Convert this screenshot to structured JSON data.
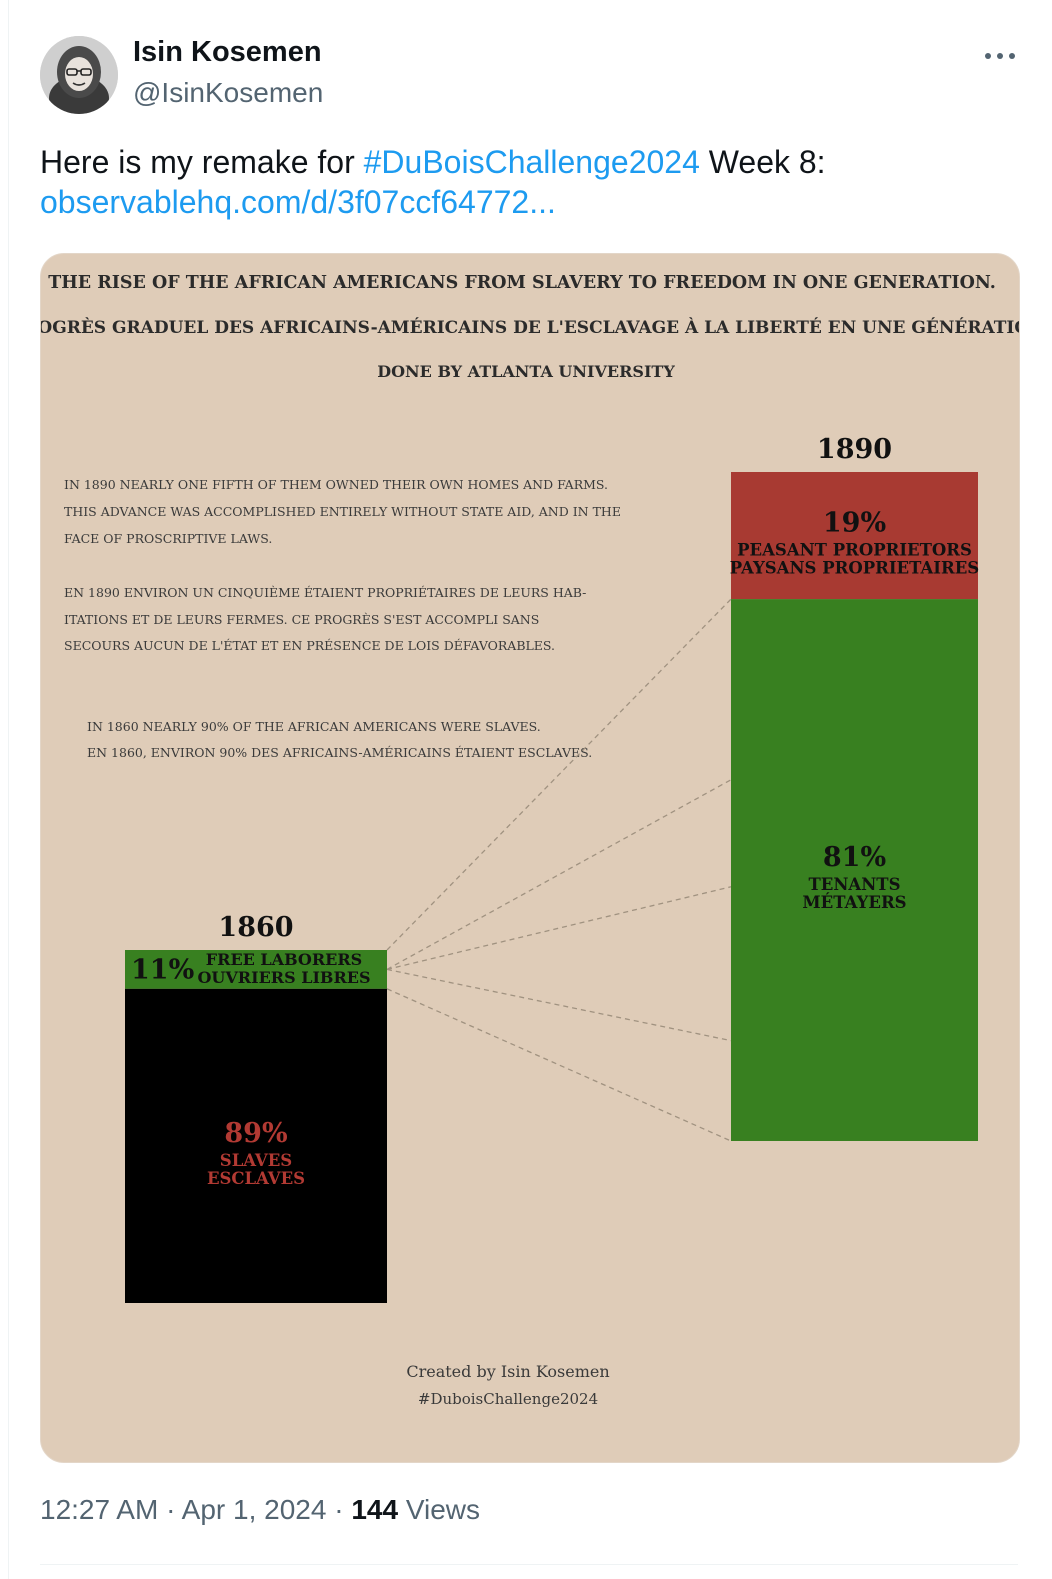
{
  "author": {
    "name": "Isin Kosemen",
    "handle": "@IsinKosemen",
    "avatar_icon": "person-photo-icon"
  },
  "more_icon": "more-horizontal-icon",
  "tweet": {
    "text_before": "Here is my remake for ",
    "hashtag": "#DuBoisChallenge2024",
    "text_after": " Week 8:",
    "link": "observablehq.com/d/3f07ccf64772..."
  },
  "meta": {
    "time": "12:27 AM",
    "separator": "·",
    "date": "Apr 1, 2024",
    "views_count": "144",
    "views_label": "Views"
  },
  "chart_data": {
    "type": "bar",
    "title": "THE RISE OF THE AFRICAN AMERICANS FROM SLAVERY TO FREEDOM IN ONE GENERATION.",
    "subtitle": "PROGRÈS GRADUEL DES AFRICAINS-AMÉRICAINS DE L'ESCLAVAGE À LA LIBERTÉ EN UNE GÉNÉRATION.",
    "credit_line": "DONE BY ATLANTA UNIVERSITY",
    "annotation_1890": [
      "IN 1890 NEARLY ONE FIFTH OF THEM OWNED THEIR OWN HOMES AND FARMS.",
      "THIS ADVANCE WAS ACCOMPLISHED ENTIRELY WITHOUT STATE AID, AND IN THE",
      "FACE OF PROSCRIPTIVE LAWS.",
      "EN 1890 ENVIRON UN CINQUIÈME ÉTAIENT PROPRIÉTAIRES DE LEURS HAB-",
      "ITATIONS ET DE LEURS FERMES. CE PROGRÈS S'EST ACCOMPLI SANS",
      "SECOURS AUCUN DE L'ÉTAT ET EN PRÉSENCE DE LOIS DÉFAVORABLES."
    ],
    "annotation_1860": [
      "IN 1860 NEARLY 90% OF THE AFRICAN AMERICANS WERE SLAVES.",
      "EN 1860, ENVIRON 90% DES AFRICAINS-AMÉRICAINS ÉTAIENT ESCLAVES."
    ],
    "bars": [
      {
        "year": "1860",
        "segments": [
          {
            "value": 11,
            "label": "11%",
            "name_en": "FREE LABORERS",
            "name_fr": "OUVRIERS LIBRES",
            "color": "#388020",
            "text_color": "#111111"
          },
          {
            "value": 89,
            "label": "89%",
            "name_en": "SLAVES",
            "name_fr": "ESCLAVES",
            "color": "#000000",
            "text_color": "#b23a33"
          }
        ]
      },
      {
        "year": "1890",
        "segments": [
          {
            "value": 19,
            "label": "19%",
            "name_en": "PEASANT PROPRIETORS",
            "name_fr": "PAYSANS PROPRIETAIRES",
            "color": "#a83a32",
            "text_color": "#111111"
          },
          {
            "value": 81,
            "label": "81%",
            "name_en": "TENANTS",
            "name_fr": "MÉTAYERS",
            "color": "#388020",
            "text_color": "#111111"
          }
        ]
      }
    ],
    "footer": [
      "Created by Isin Kosemen",
      "#DuboisChallenge2024"
    ],
    "colors": {
      "background": "#dfccb8",
      "text": "#2b2b2b",
      "connector": "#a09280"
    }
  }
}
